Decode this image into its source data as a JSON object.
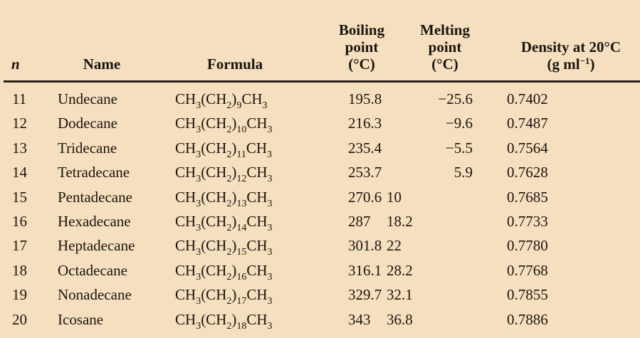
{
  "header": {
    "n": "n",
    "name": "Name",
    "formula": "Formula",
    "boiling_point": [
      "Boiling",
      "point",
      "(°C)"
    ],
    "melting_point": [
      "Melting",
      "point",
      "(°C)"
    ],
    "density": {
      "line1": "Density at 20°C",
      "line2_prefix": "(g ml",
      "line2_sup": "−1",
      "line2_suffix": ")"
    }
  },
  "rows": [
    {
      "n": "11",
      "name": "Undecane",
      "formula_sub": "9",
      "boiling": "195.8",
      "melting": "−25.6",
      "melting_align": "right",
      "density": "0.7402"
    },
    {
      "n": "12",
      "name": "Dodecane",
      "formula_sub": "10",
      "boiling": "216.3",
      "melting": "−9.6",
      "melting_align": "right",
      "density": "0.7487"
    },
    {
      "n": "13",
      "name": "Tridecane",
      "formula_sub": "11",
      "boiling": "235.4",
      "melting": "−5.5",
      "melting_align": "right",
      "density": "0.7564"
    },
    {
      "n": "14",
      "name": "Tetradecane",
      "formula_sub": "12",
      "boiling": "253.7",
      "melting": "5.9",
      "melting_align": "right",
      "density": "0.7628"
    },
    {
      "n": "15",
      "name": "Pentadecane",
      "formula_sub": "13",
      "boiling": "270.6",
      "melting": "10",
      "melting_align": "left",
      "density": "0.7685"
    },
    {
      "n": "16",
      "name": "Hexadecane",
      "formula_sub": "14",
      "boiling": "287",
      "melting": "18.2",
      "melting_align": "left",
      "density": "0.7733"
    },
    {
      "n": "17",
      "name": "Heptadecane",
      "formula_sub": "15",
      "boiling": "301.8",
      "melting": "22",
      "melting_align": "left",
      "density": "0.7780"
    },
    {
      "n": "18",
      "name": "Octadecane",
      "formula_sub": "16",
      "boiling": "316.1",
      "melting": "28.2",
      "melting_align": "left",
      "density": "0.7768"
    },
    {
      "n": "19",
      "name": "Nonadecane",
      "formula_sub": "17",
      "boiling": "329.7",
      "melting": "32.1",
      "melting_align": "left",
      "density": "0.7855"
    },
    {
      "n": "20",
      "name": "Icosane",
      "formula_sub": "18",
      "boiling": "343",
      "melting": "36.8",
      "melting_align": "left",
      "density": "0.7886"
    }
  ],
  "formula_parts": {
    "a": "CH",
    "a_sub": "3",
    "b": "(CH",
    "b_sub": "2",
    "c": ")",
    "d": "CH",
    "d_sub": "3"
  },
  "colors": {
    "background": "#f6dfbe",
    "text": "#1a1410",
    "rule": "#2b211a"
  }
}
